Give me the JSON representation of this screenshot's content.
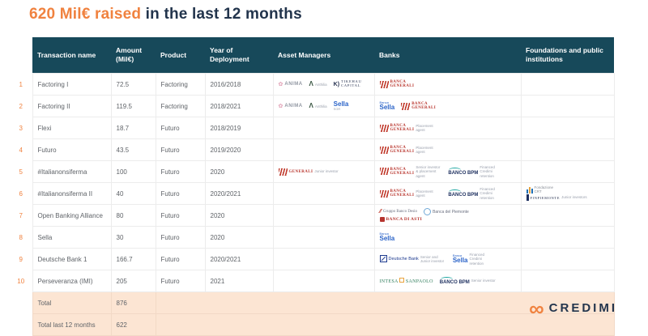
{
  "title": {
    "highlight": "620 Mil€ raised",
    "rest": " in the last 12 months"
  },
  "colors": {
    "accent_orange": "#f0823f",
    "header_teal": "#17495a",
    "title_navy": "#22344c",
    "total_row_peach": "#fce5d3"
  },
  "table": {
    "headers": [
      "Transaction name",
      "Amount (Mil€)",
      "Product",
      "Year of Deployment",
      "Asset Managers",
      "Banks",
      "Foundations and public institutions"
    ],
    "rows": [
      {
        "num": "1",
        "name": "Factoring I",
        "amount": "72.5",
        "product": "Factoring",
        "year": "2016/2018",
        "asset_managers": [
          {
            "logo": "anima",
            "text": "ANIMA"
          },
          {
            "logo": "anthilia",
            "text": "Anthilia"
          },
          {
            "logo": "tikehau",
            "text": "TIKEHAU CAPITAL"
          }
        ],
        "banks": [
          {
            "logo": "banca-generali",
            "text": "BANCA GENERALI"
          }
        ],
        "foundations": []
      },
      {
        "num": "2",
        "name": "Factoring II",
        "amount": "119.5",
        "product": "Factoring",
        "year": "2018/2021",
        "asset_managers": [
          {
            "logo": "anima",
            "text": "ANIMA"
          },
          {
            "logo": "anthilia",
            "text": "Anthilia"
          },
          {
            "logo": "sella-sgr",
            "text": "Sella SGR"
          }
        ],
        "banks": [
          {
            "logo": "banca-sella",
            "text": "Banca Sella"
          },
          {
            "logo": "banca-generali",
            "text": "BANCA GENERALI"
          }
        ],
        "foundations": []
      },
      {
        "num": "3",
        "name": "Flexi",
        "amount": "18.7",
        "product": "Futuro",
        "year": "2018/2019",
        "asset_managers": [],
        "banks": [
          {
            "logo": "banca-generali",
            "text": "BANCA GENERALI",
            "label": "Placement agent"
          }
        ],
        "foundations": []
      },
      {
        "num": "4",
        "name": "Futuro",
        "amount": "43.5",
        "product": "Futuro",
        "year": "2019/2020",
        "asset_managers": [],
        "banks": [
          {
            "logo": "banca-generali",
            "text": "BANCA GENERALI",
            "label": "Placement agent"
          }
        ],
        "foundations": []
      },
      {
        "num": "5",
        "name": "#Italianonsiferma",
        "amount": "100",
        "product": "Futuro",
        "year": "2020",
        "asset_managers": [
          {
            "logo": "generali",
            "text": "GENERALI",
            "label": "Junior investor"
          }
        ],
        "banks": [
          {
            "logo": "banca-generali",
            "text": "BANCA GENERALI",
            "label": "Senior investor & placement agent"
          },
          {
            "logo": "banco-bpm",
            "text": "BANCO BPM",
            "label": "Financed Credimi retention"
          }
        ],
        "foundations": []
      },
      {
        "num": "6",
        "name": "#Italianonsiferma II",
        "amount": "40",
        "product": "Futuro",
        "year": "2020/2021",
        "asset_managers": [],
        "banks": [
          {
            "logo": "banca-generali",
            "text": "BANCA GENERALI",
            "label": "Placement agent"
          },
          {
            "logo": "banco-bpm",
            "text": "BANCO BPM",
            "label": "Financed Credimi retention"
          }
        ],
        "foundations": [
          {
            "logo": "fondazione-crt",
            "text": "Fondazione CRT"
          },
          {
            "logo": "finpiemonte",
            "text": "FINPIEMONTE",
            "label": "Junior investors"
          }
        ]
      },
      {
        "num": "7",
        "name": "Open Banking Alliance",
        "amount": "80",
        "product": "Futuro",
        "year": "2020",
        "asset_managers": [],
        "banks": [
          {
            "logo": "gruppo-banco-desio",
            "text": "Gruppo Banco Desio"
          },
          {
            "logo": "banca-del-piemonte",
            "text": "Banca del Piemonte"
          },
          {
            "logo": "banca-di-asti",
            "text": "BANCA DI ASTI"
          }
        ],
        "foundations": []
      },
      {
        "num": "8",
        "name": "Sella",
        "amount": "30",
        "product": "Futuro",
        "year": "2020",
        "asset_managers": [],
        "banks": [
          {
            "logo": "banca-sella",
            "text": "Banca Sella"
          }
        ],
        "foundations": []
      },
      {
        "num": "9",
        "name": "Deutsche Bank 1",
        "amount": "166.7",
        "product": "Futuro",
        "year": "2020/2021",
        "asset_managers": [],
        "banks": [
          {
            "logo": "deutsche-bank",
            "text": "Deutsche Bank",
            "label": "Senior and Junior investor"
          },
          {
            "logo": "banca-sella",
            "text": "Banca Sella",
            "label": "Financed Credimi retention"
          }
        ],
        "foundations": []
      },
      {
        "num": "10",
        "name": "Perseveranza (IMI)",
        "amount": "205",
        "product": "Futuro",
        "year": "2021",
        "asset_managers": [],
        "banks": [
          {
            "logo": "intesa-sanpaolo",
            "text": "INTESA SANPAOLO"
          },
          {
            "logo": "banco-bpm",
            "text": "BANCO BPM",
            "label": "Senior investor"
          }
        ],
        "foundations": []
      }
    ],
    "totals": [
      {
        "label": "Total",
        "value": "876"
      },
      {
        "label": "Total last 12 months",
        "value": "622"
      }
    ]
  },
  "footer": {
    "brand": "CREDIMI"
  }
}
